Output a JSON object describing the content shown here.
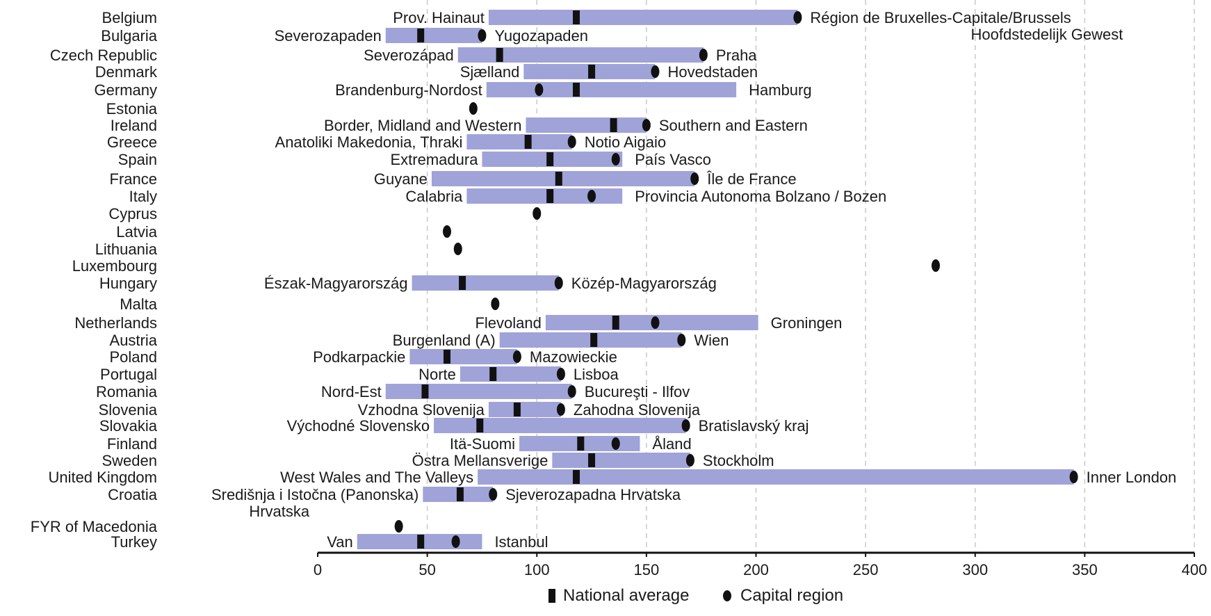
{
  "chart_data": {
    "type": "bar",
    "title": "",
    "xlabel": "",
    "ylabel": "",
    "xlim": [
      0,
      400
    ],
    "x_ticks": [
      "0",
      "50",
      "100",
      "150",
      "200",
      "250",
      "300",
      "350",
      "400"
    ],
    "grid": "vertical dashed",
    "legend_position": "bottom",
    "colors": {
      "range_bar": "#9fa3d8",
      "range_bar_dark": "#7c80c4",
      "marker": "#111111",
      "grid": "#c8c8c8"
    },
    "legend": [
      {
        "marker": "square",
        "label": "National average"
      },
      {
        "marker": "dot",
        "label": "Capital region"
      }
    ],
    "rows": [
      {
        "country": "Belgium",
        "min": 78,
        "max": 219,
        "min_label": "Prov. Hainaut",
        "max_label": "Région de Bruxelles-Capitale/Brussels",
        "max_label_line2": "Hoofdstedelijk Gewest",
        "national": 118,
        "capital": 219
      },
      {
        "country": "Bulgaria",
        "min": 31,
        "max": 75,
        "min_label": "Severozapaden",
        "max_label": "Yugozapaden",
        "national": 47,
        "capital": 75
      },
      {
        "country": "Czech Republic",
        "min": 64,
        "max": 176,
        "min_label": "Severozápad",
        "max_label": "Praha",
        "national": 83,
        "capital": 176
      },
      {
        "country": "Denmark",
        "min": 94,
        "max": 154,
        "min_label": "Sjælland",
        "max_label": "Hovedstaden",
        "national": 125,
        "capital": 154
      },
      {
        "country": "Germany",
        "min": 77,
        "max": 191,
        "min_label": "Brandenburg-Nordost",
        "max_label": "Hamburg",
        "national": 118,
        "capital": 101
      },
      {
        "country": "Estonia",
        "national": 71,
        "capital": 71
      },
      {
        "country": "Ireland",
        "min": 95,
        "max": 150,
        "min_label": "Border, Midland and Western",
        "max_label": "Southern and Eastern",
        "national": 135,
        "capital": 150
      },
      {
        "country": "Greece",
        "min": 68,
        "max": 116,
        "min_label": "Anatoliki Makedonia, Thraki",
        "max_label": "Notio Aigaio",
        "national": 96,
        "capital": 116
      },
      {
        "country": "Spain",
        "min": 75,
        "max": 139,
        "min_label": "Extremadura",
        "max_label": "País Vasco",
        "national": 106,
        "capital": 136
      },
      {
        "country": "France",
        "min": 52,
        "max": 172,
        "min_label": "Guyane",
        "max_label": "Île de France",
        "national": 110,
        "capital": 172
      },
      {
        "country": "Italy",
        "min": 68,
        "max": 139,
        "min_label": "Calabria",
        "max_label": "Provincia Autonoma Bolzano / Bozen",
        "national": 106,
        "capital": 125
      },
      {
        "country": "Cyprus",
        "national": 100,
        "capital": 100
      },
      {
        "country": "Latvia",
        "national": 59,
        "capital": 59
      },
      {
        "country": "Lithuania",
        "national": 64,
        "capital": 64
      },
      {
        "country": "Luxembourg",
        "national": 282,
        "capital": 282
      },
      {
        "country": "Hungary",
        "min": 43,
        "max": 110,
        "min_label": "Észak-Magyarország",
        "max_label": "Közép-Magyarország",
        "national": 66,
        "capital": 110
      },
      {
        "country": "Malta",
        "national": 81,
        "capital": 81
      },
      {
        "country": "Netherlands",
        "min": 104,
        "max": 201,
        "min_label": "Flevoland",
        "max_label": "Groningen",
        "national": 136,
        "capital": 154
      },
      {
        "country": "Austria",
        "min": 83,
        "max": 166,
        "min_label": "Burgenland (A)",
        "max_label": "Wien",
        "national": 126,
        "capital": 166
      },
      {
        "country": "Poland",
        "min": 42,
        "max": 91,
        "min_label": "Podkarpackie",
        "max_label": "Mazowieckie",
        "national": 59,
        "capital": 91
      },
      {
        "country": "Portugal",
        "min": 65,
        "max": 111,
        "min_label": "Norte",
        "max_label": "Lisboa",
        "national": 80,
        "capital": 111
      },
      {
        "country": "Romania",
        "min": 31,
        "max": 116,
        "min_label": "Nord-Est",
        "max_label": "Bucureşti - Ilfov",
        "national": 49,
        "capital": 116
      },
      {
        "country": "Slovenia",
        "min": 78,
        "max": 111,
        "min_label": "Vzhodna Slovenija",
        "max_label": "Zahodna Slovenija",
        "national": 91,
        "capital": 111
      },
      {
        "country": "Slovakia",
        "min": 53,
        "max": 168,
        "min_label": "Východné Slovensko",
        "max_label": "Bratislavský kraj",
        "national": 74,
        "capital": 168
      },
      {
        "country": "Finland",
        "min": 92,
        "max": 147,
        "min_label": "Itä-Suomi",
        "max_label": "Åland",
        "national": 120,
        "capital": 136
      },
      {
        "country": "Sweden",
        "min": 107,
        "max": 170,
        "min_label": "Östra Mellansverige",
        "max_label": "Stockholm",
        "national": 125,
        "capital": 170
      },
      {
        "country": "United Kingdom",
        "min": 73,
        "max": 345,
        "min_label": "West Wales and The Valleys",
        "max_label": "Inner London",
        "national": 118,
        "capital": 345
      },
      {
        "country": "Croatia",
        "min": 48,
        "max": 80,
        "min_label": "Središnja i Istočna (Panonska)",
        "min_label_line2": "Hrvatska",
        "max_label": "Sjeverozapadna Hrvatska",
        "national": 65,
        "capital": 80
      },
      {
        "country": "FYR of Macedonia",
        "national": 37,
        "capital": 37
      },
      {
        "country": "Turkey",
        "min": 18,
        "max": 75,
        "min_label": "Van",
        "max_label": "Istanbul",
        "national": 47,
        "capital": 63
      }
    ]
  }
}
